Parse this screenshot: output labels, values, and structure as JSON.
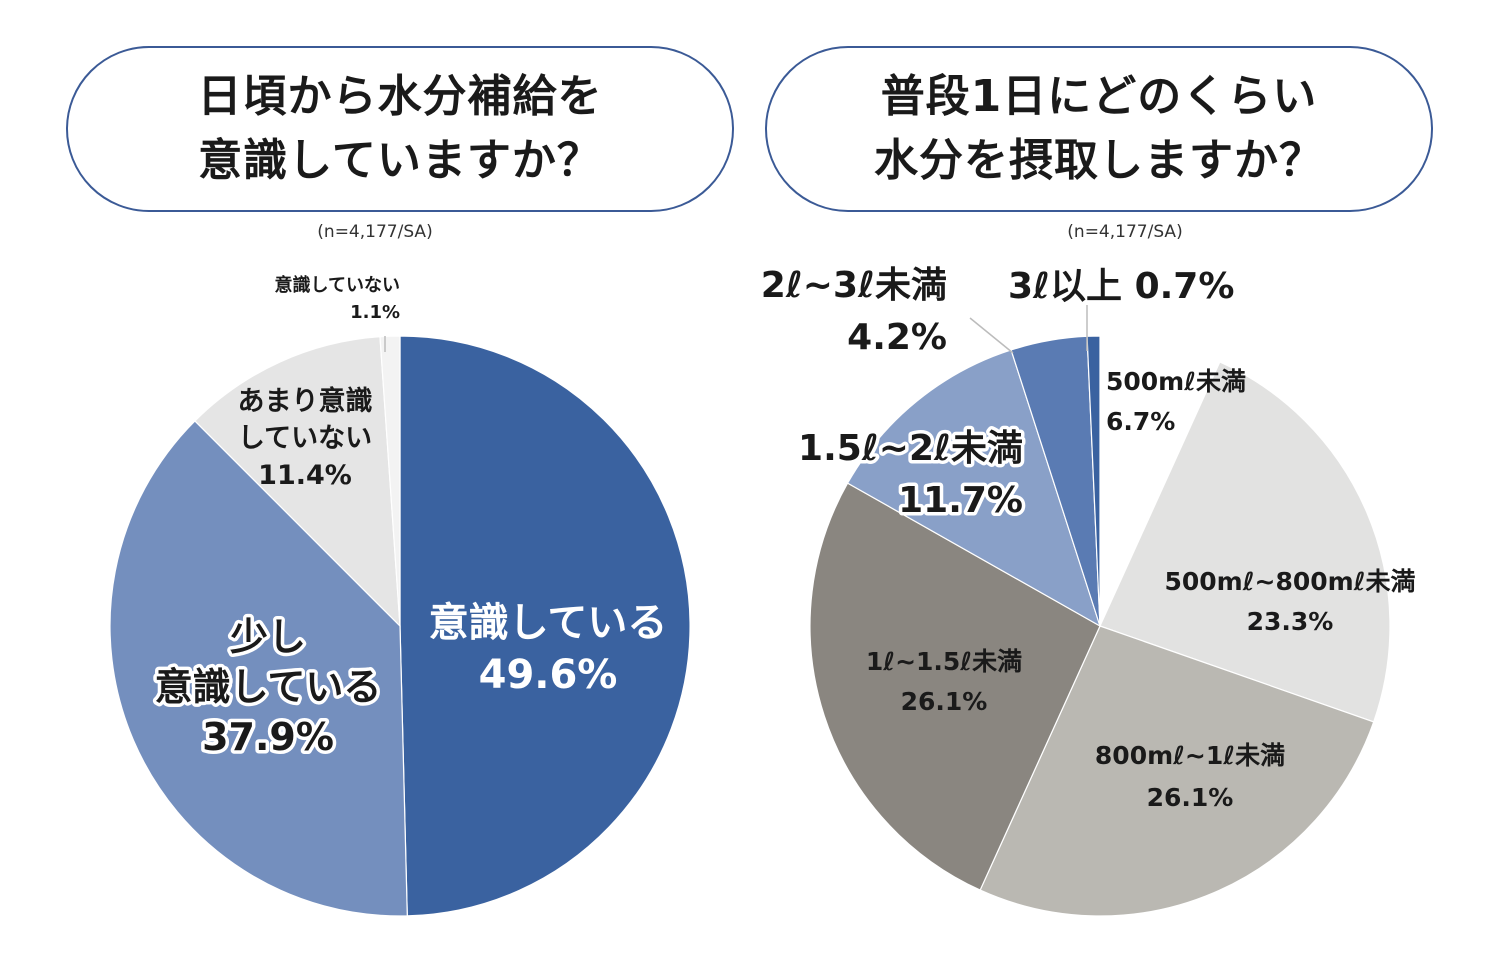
{
  "chart_data": [
    {
      "type": "pie",
      "title_lines": [
        "日頃から水分補給を",
        "意識していますか？"
      ],
      "note": "(n=4,177/SA)",
      "slices": [
        {
          "label_lines": [
            "意識している"
          ],
          "value": 49.6,
          "value_label": "49.6%",
          "color": "#3a62a0"
        },
        {
          "label_lines": [
            "少し",
            "意識している"
          ],
          "value": 37.9,
          "value_label": "37.9%",
          "color": "#748fbe"
        },
        {
          "label_lines": [
            "あまり意識",
            "していない"
          ],
          "value": 11.4,
          "value_label": "11.4%",
          "color": "#e5e5e5"
        },
        {
          "label_lines": [
            "意識していない"
          ],
          "value": 1.1,
          "value_label": "1.1%",
          "color": "#f3f3f3"
        }
      ]
    },
    {
      "type": "pie",
      "title_lines": [
        "普段1日にどのくらい",
        "水分を摂取しますか？"
      ],
      "note": "(n=4,177/SA)",
      "slices": [
        {
          "label_lines": [
            "500mℓ未満"
          ],
          "value": 6.7,
          "value_label": "6.7%",
          "color": "#ffffff"
        },
        {
          "label_lines": [
            "500mℓ~800mℓ未満"
          ],
          "value": 23.3,
          "value_label": "23.3%",
          "color": "#e2e2e1"
        },
        {
          "label_lines": [
            "800mℓ~1ℓ未満"
          ],
          "value": 26.1,
          "value_label": "26.1%",
          "color": "#bab8b2"
        },
        {
          "label_lines": [
            "1ℓ~1.5ℓ未満"
          ],
          "value": 26.1,
          "value_label": "26.1%",
          "color": "#8a8680"
        },
        {
          "label_lines": [
            "1.5ℓ~2ℓ未満"
          ],
          "value": 11.7,
          "value_label": "11.7%",
          "color": "#89a0c8"
        },
        {
          "label_lines": [
            "2ℓ~3ℓ未満"
          ],
          "value": 4.2,
          "value_label": "4.2%",
          "color": "#5a7bb3"
        },
        {
          "label_lines": [
            "3ℓ以上"
          ],
          "value": 0.7,
          "value_label": "0.7%",
          "color": "#3a62a0"
        }
      ]
    }
  ]
}
